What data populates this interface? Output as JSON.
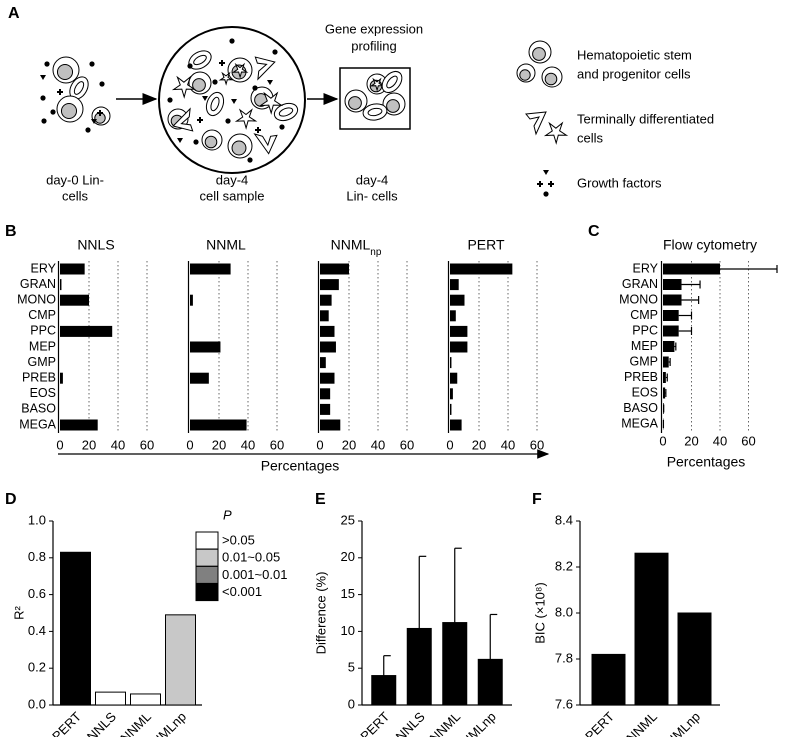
{
  "panels": [
    "A",
    "B",
    "C",
    "D",
    "E",
    "F"
  ],
  "diagram": {
    "profiling_lines": [
      "Gene expression",
      "profiling"
    ],
    "steps": [
      {
        "lines": [
          "day-0 Lin-",
          "cells"
        ]
      },
      {
        "lines": [
          "day-4",
          "cell sample"
        ]
      },
      {
        "lines": [
          "day-4",
          "Lin- cells"
        ]
      }
    ],
    "legend": [
      {
        "lines": [
          "Hematopoietic stem",
          "and progenitor cells"
        ]
      },
      {
        "lines": [
          "Terminally differentiated",
          "cells"
        ]
      },
      {
        "lines": [
          "Growth factors"
        ]
      }
    ]
  },
  "chart_data": [
    {
      "type": "bar",
      "orientation": "horizontal",
      "categories": [
        "ERY",
        "GRAN",
        "MONO",
        "CMP",
        "PPC",
        "MEP",
        "GMP",
        "PREB",
        "EOS",
        "BASO",
        "MEGA"
      ],
      "series": [
        {
          "name": "NNLS",
          "values": [
            17,
            1,
            20,
            0,
            36,
            0,
            0,
            2,
            0,
            0,
            26
          ]
        },
        {
          "name": "NNML",
          "values": [
            28,
            0,
            2,
            0,
            0,
            21,
            0,
            13,
            0,
            0,
            39
          ]
        },
        {
          "name": "NNML",
          "subscript": "np",
          "values": [
            20,
            13,
            8,
            6,
            10,
            11,
            4,
            10,
            7,
            7,
            14
          ]
        },
        {
          "name": "PERT",
          "values": [
            43,
            6,
            10,
            4,
            12,
            12,
            1,
            5,
            2,
            1,
            8
          ]
        }
      ],
      "xlim": [
        0,
        80
      ],
      "xticks": [
        0,
        20,
        40,
        60
      ],
      "xlabel": "Percentages",
      "grid": true,
      "color": "#000000"
    },
    {
      "type": "bar",
      "orientation": "horizontal",
      "title": "Flow cytometry",
      "categories": [
        "ERY",
        "GRAN",
        "MONO",
        "CMP",
        "PPC",
        "MEP",
        "GMP",
        "PREB",
        "EOS",
        "BASO",
        "MEGA"
      ],
      "values": [
        40,
        13,
        13,
        11,
        11,
        8,
        4,
        2,
        1.5,
        0.5,
        0.3
      ],
      "errors": [
        40,
        13,
        12,
        9,
        9,
        1,
        1,
        1,
        0.5,
        0,
        0
      ],
      "xlim": [
        0,
        80
      ],
      "xticks": [
        0,
        20,
        40,
        60
      ],
      "xlabel": "Percentages",
      "grid": true,
      "color": "#000000"
    },
    {
      "type": "bar",
      "orientation": "vertical",
      "ylabel": "R²",
      "categories": [
        "PERT",
        "NNLS",
        "NNML",
        "NNMLnp"
      ],
      "values": [
        0.83,
        0.07,
        0.06,
        0.49
      ],
      "colors": [
        "#000000",
        "#ffffff",
        "#ffffff",
        "#c8c8c8"
      ],
      "ylim": [
        0,
        1
      ],
      "yticks": [
        {
          "value": 0,
          "label": "0.0"
        },
        0.2,
        0.4,
        0.6,
        0.8,
        {
          "value": 1,
          "label": "1.0"
        }
      ],
      "legend": {
        "title": "P",
        "entries": [
          {
            "label": ">0.05",
            "color": "#ffffff"
          },
          {
            "label": "0.01~0.05",
            "color": "#c8c8c8"
          },
          {
            "label": "0.001~0.01",
            "color": "#808080"
          },
          {
            "label": "<0.001",
            "color": "#000000"
          }
        ]
      }
    },
    {
      "type": "bar",
      "orientation": "vertical",
      "ylabel": "Difference (%)",
      "categories": [
        "PERT",
        "NNLS",
        "NNML",
        "NNMLnp"
      ],
      "values": [
        4,
        10.4,
        11.2,
        6.2
      ],
      "errors": [
        2.7,
        9.8,
        10.1,
        6.1
      ],
      "ylim": [
        0,
        25
      ],
      "yticks": [
        0,
        5,
        10,
        15,
        20,
        25
      ],
      "color": "#000000"
    },
    {
      "type": "bar",
      "orientation": "vertical",
      "ylabel": "BIC (×10⁸)",
      "categories": [
        "PERT",
        "NNML",
        "NNMLnp"
      ],
      "values": [
        7.82,
        8.26,
        8.0
      ],
      "ylim": [
        7.6,
        8.4
      ],
      "yticks": [
        7.6,
        7.8,
        {
          "value": 8,
          "label": "8.0"
        },
        8.2,
        8.4
      ],
      "color": "#000000"
    }
  ]
}
